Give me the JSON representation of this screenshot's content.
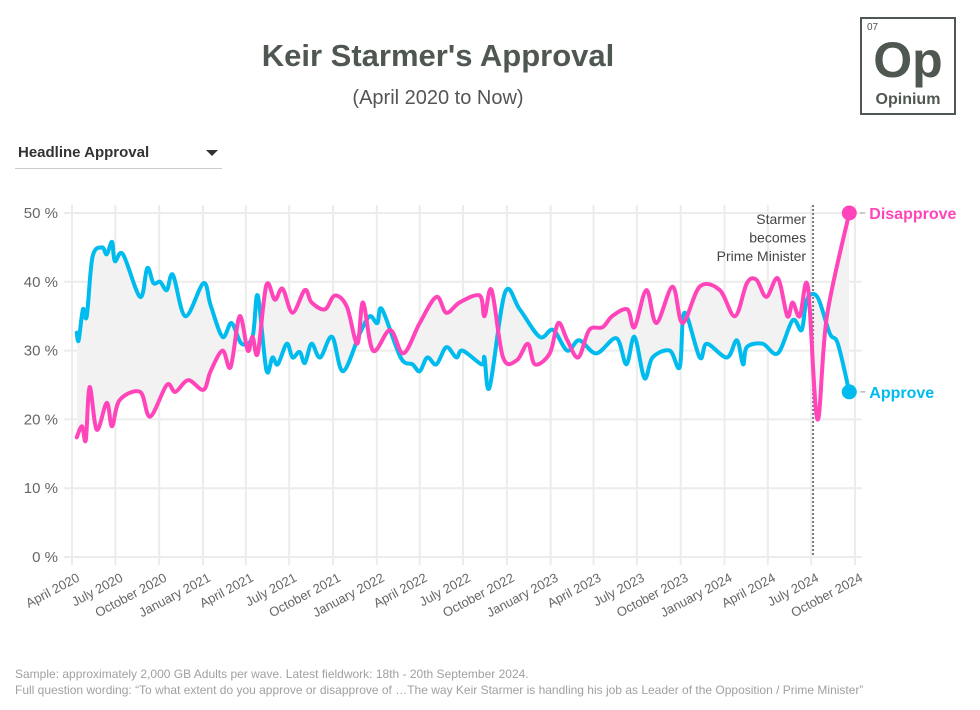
{
  "header": {
    "title": "Keir Starmer's Approval",
    "subtitle": "(April 2020 to Now)"
  },
  "logo": {
    "number": "07",
    "symbol": "Op",
    "name": "Opinium",
    "color": "#4f5751"
  },
  "dropdown": {
    "selected": "Headline Approval",
    "icon": "caret-down-icon"
  },
  "footer": {
    "line1": "Sample: approximately 2,000 GB Adults per wave. Latest fieldwork: 18th - 20th September 2024.",
    "line2": "Full question wording: “To what extent do you approve or disapprove of …The way Keir Starmer is handling his job as Leader of the Opposition / Prime Minister”"
  },
  "chart_data": {
    "type": "line",
    "title": "Keir Starmer's Approval",
    "subtitle": "(April 2020 to Now)",
    "xlim": [
      "2020-04-01",
      "2024-10-01"
    ],
    "ylim": [
      0,
      50
    ],
    "yticks": [
      0,
      10,
      20,
      30,
      40,
      50
    ],
    "ytick_labels": [
      "0 %",
      "10 %",
      "20 %",
      "30 %",
      "40 %",
      "50 %"
    ],
    "xticks": [
      "2020-04-01",
      "2020-07-01",
      "2020-10-01",
      "2021-01-01",
      "2021-04-01",
      "2021-07-01",
      "2021-10-01",
      "2022-01-01",
      "2022-04-01",
      "2022-07-01",
      "2022-10-01",
      "2023-01-01",
      "2023-04-01",
      "2023-07-01",
      "2023-10-01",
      "2024-01-01",
      "2024-04-01",
      "2024-07-01",
      "2024-10-01"
    ],
    "xtick_labels": [
      "April 2020",
      "July 2020",
      "October 2020",
      "January 2021",
      "April 2021",
      "July 2021",
      "October 2021",
      "January 2022",
      "April 2022",
      "July 2022",
      "October 2022",
      "January 2023",
      "April 2023",
      "July 2023",
      "October 2023",
      "January 2024",
      "April 2024",
      "July 2024",
      "October 2024"
    ],
    "grid": true,
    "shade_between_series": "#f2f2f2",
    "annotation": {
      "date": "2024-07-05",
      "lines": [
        "Starmer",
        "becomes",
        "Prime Minister"
      ],
      "style": "dotted"
    },
    "series": [
      {
        "name": "Disapprove",
        "color": "#ff45b9",
        "end_label": true,
        "points": [
          [
            "2020-04-11",
            17.4
          ],
          [
            "2020-04-22",
            19
          ],
          [
            "2020-04-30",
            17
          ],
          [
            "2020-05-08",
            24.7
          ],
          [
            "2020-05-23",
            18.5
          ],
          [
            "2020-06-13",
            22.4
          ],
          [
            "2020-06-24",
            19
          ],
          [
            "2020-07-10",
            22.8
          ],
          [
            "2020-08-22",
            24
          ],
          [
            "2020-09-12",
            20.4
          ],
          [
            "2020-10-17",
            25
          ],
          [
            "2020-11-04",
            24
          ],
          [
            "2020-12-01",
            25.7
          ],
          [
            "2021-01-02",
            24.3
          ],
          [
            "2021-01-17",
            27
          ],
          [
            "2021-02-11",
            30
          ],
          [
            "2021-02-28",
            27.6
          ],
          [
            "2021-03-19",
            35
          ],
          [
            "2021-04-05",
            30
          ],
          [
            "2021-04-15",
            32
          ],
          [
            "2021-04-26",
            29.6
          ],
          [
            "2021-05-14",
            39.5
          ],
          [
            "2021-06-01",
            37.4
          ],
          [
            "2021-06-17",
            39
          ],
          [
            "2021-07-08",
            35.5
          ],
          [
            "2021-08-03",
            38.8
          ],
          [
            "2021-08-17",
            37
          ],
          [
            "2021-09-14",
            36
          ],
          [
            "2021-10-05",
            38
          ],
          [
            "2021-10-30",
            36.4
          ],
          [
            "2021-11-21",
            31
          ],
          [
            "2021-12-03",
            37
          ],
          [
            "2021-12-24",
            30
          ],
          [
            "2022-01-29",
            33
          ],
          [
            "2022-02-26",
            29.6
          ],
          [
            "2022-04-01",
            34
          ],
          [
            "2022-05-06",
            37.8
          ],
          [
            "2022-05-27",
            35.5
          ],
          [
            "2022-06-24",
            37
          ],
          [
            "2022-08-05",
            38
          ],
          [
            "2022-08-15",
            35
          ],
          [
            "2022-08-30",
            38.8
          ],
          [
            "2022-09-23",
            29
          ],
          [
            "2022-10-22",
            28.6
          ],
          [
            "2022-11-14",
            31
          ],
          [
            "2022-11-29",
            28
          ],
          [
            "2022-12-30",
            29.6
          ],
          [
            "2023-01-17",
            34
          ],
          [
            "2023-02-05",
            31.5
          ],
          [
            "2023-02-28",
            29
          ],
          [
            "2023-03-23",
            33
          ],
          [
            "2023-04-20",
            33.4
          ],
          [
            "2023-05-10",
            35
          ],
          [
            "2023-06-11",
            36
          ],
          [
            "2023-06-26",
            33.4
          ],
          [
            "2023-07-21",
            38.8
          ],
          [
            "2023-08-11",
            34
          ],
          [
            "2023-09-14",
            39.3
          ],
          [
            "2023-10-05",
            34
          ],
          [
            "2023-11-10",
            39.3
          ],
          [
            "2023-12-22",
            38.8
          ],
          [
            "2024-01-23",
            35
          ],
          [
            "2024-02-17",
            39.8
          ],
          [
            "2024-03-08",
            40.3
          ],
          [
            "2024-03-29",
            37.8
          ],
          [
            "2024-04-22",
            40.5
          ],
          [
            "2024-05-12",
            35
          ],
          [
            "2024-05-23",
            37
          ],
          [
            "2024-06-07",
            35
          ],
          [
            "2024-06-24",
            39.3
          ],
          [
            "2024-07-14",
            20
          ],
          [
            "2024-08-03",
            35
          ],
          [
            "2024-09-19",
            50
          ]
        ]
      },
      {
        "name": "Approve",
        "color": "#00bbee",
        "end_label": true,
        "points": [
          [
            "2020-04-11",
            32.6
          ],
          [
            "2020-04-15",
            31.5
          ],
          [
            "2020-04-24",
            36
          ],
          [
            "2020-05-02",
            35
          ],
          [
            "2020-05-14",
            43.6
          ],
          [
            "2020-06-03",
            45
          ],
          [
            "2020-06-13",
            44
          ],
          [
            "2020-06-24",
            45.8
          ],
          [
            "2020-06-30",
            43
          ],
          [
            "2020-07-17",
            44
          ],
          [
            "2020-08-22",
            37.8
          ],
          [
            "2020-09-06",
            42
          ],
          [
            "2020-09-19",
            39.8
          ],
          [
            "2020-10-03",
            40
          ],
          [
            "2020-10-17",
            38.8
          ],
          [
            "2020-10-30",
            41
          ],
          [
            "2020-11-25",
            35
          ],
          [
            "2021-01-02",
            39.8
          ],
          [
            "2021-01-17",
            36.6
          ],
          [
            "2021-02-11",
            32
          ],
          [
            "2021-03-02",
            34
          ],
          [
            "2021-03-23",
            31
          ],
          [
            "2021-04-15",
            32
          ],
          [
            "2021-04-26",
            38
          ],
          [
            "2021-05-14",
            27.2
          ],
          [
            "2021-05-27",
            29
          ],
          [
            "2021-06-07",
            28
          ],
          [
            "2021-06-26",
            31
          ],
          [
            "2021-07-08",
            29
          ],
          [
            "2021-07-23",
            29.8
          ],
          [
            "2021-08-03",
            28.2
          ],
          [
            "2021-08-17",
            31
          ],
          [
            "2021-09-04",
            29
          ],
          [
            "2021-09-29",
            32
          ],
          [
            "2021-10-22",
            27
          ],
          [
            "2021-11-27",
            32.6
          ],
          [
            "2021-12-17",
            35
          ],
          [
            "2022-01-02",
            34
          ],
          [
            "2022-01-12",
            36
          ],
          [
            "2022-02-20",
            29
          ],
          [
            "2022-03-17",
            28
          ],
          [
            "2022-04-01",
            27
          ],
          [
            "2022-04-17",
            29
          ],
          [
            "2022-05-06",
            28
          ],
          [
            "2022-05-27",
            30.5
          ],
          [
            "2022-06-17",
            29
          ],
          [
            "2022-06-30",
            30
          ],
          [
            "2022-08-09",
            28
          ],
          [
            "2022-08-15",
            29
          ],
          [
            "2022-08-26",
            24.7
          ],
          [
            "2022-09-27",
            38.4
          ],
          [
            "2022-10-28",
            36
          ],
          [
            "2022-12-09",
            32
          ],
          [
            "2023-01-06",
            33
          ],
          [
            "2023-02-05",
            30
          ],
          [
            "2023-03-02",
            31.5
          ],
          [
            "2023-04-07",
            29.6
          ],
          [
            "2023-05-19",
            31.8
          ],
          [
            "2023-06-09",
            28
          ],
          [
            "2023-06-26",
            32
          ],
          [
            "2023-07-17",
            26
          ],
          [
            "2023-08-03",
            29
          ],
          [
            "2023-09-08",
            30
          ],
          [
            "2023-09-29",
            27.6
          ],
          [
            "2023-10-09",
            35.5
          ],
          [
            "2023-11-10",
            29
          ],
          [
            "2023-11-25",
            31
          ],
          [
            "2024-01-06",
            29
          ],
          [
            "2024-01-27",
            31.5
          ],
          [
            "2024-02-09",
            28
          ],
          [
            "2024-02-17",
            30.5
          ],
          [
            "2024-03-21",
            31
          ],
          [
            "2024-04-22",
            29.6
          ],
          [
            "2024-05-23",
            34.4
          ],
          [
            "2024-06-11",
            33
          ],
          [
            "2024-06-22",
            37.4
          ],
          [
            "2024-07-14",
            37.8
          ],
          [
            "2024-08-09",
            32.5
          ],
          [
            "2024-08-26",
            31
          ],
          [
            "2024-09-19",
            24
          ]
        ]
      }
    ]
  }
}
